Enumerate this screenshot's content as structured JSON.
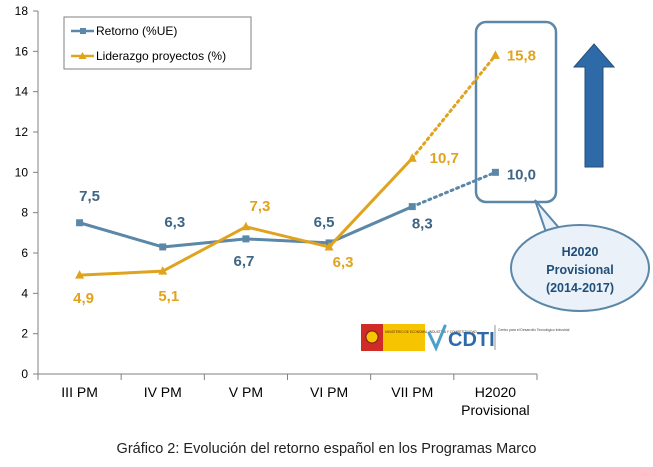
{
  "caption": "Gráfico 2: Evolución del retorno español en los Programas Marco",
  "logos": {
    "ministerio_text": "MINISTERIO DE ECONOMÍA, INDUSTRIA Y COMPETITIVIDAD",
    "cdti_text": "CDTI",
    "cdti_subtitle": "Centro para el Desarrollo Tecnológico Industrial"
  },
  "callout": {
    "line1": "H2020",
    "line2": "Provisional",
    "line3": "(2014-2017)"
  },
  "chart_data": {
    "type": "line",
    "categories": [
      "III PM",
      "IV PM",
      "V PM",
      "VI PM",
      "VII PM",
      "H2020 Provisional"
    ],
    "category_lines": [
      [
        "III PM"
      ],
      [
        "IV PM"
      ],
      [
        "V PM"
      ],
      [
        "VI PM"
      ],
      [
        "VII PM"
      ],
      [
        "H2020",
        "Provisional"
      ]
    ],
    "ylim": [
      0,
      18
    ],
    "yticks": [
      0,
      2,
      4,
      6,
      8,
      10,
      12,
      14,
      16,
      18
    ],
    "grid": false,
    "legend_position": "top-left",
    "series": [
      {
        "name": "Retorno (%UE)",
        "values": [
          7.5,
          6.3,
          6.7,
          6.5,
          8.3,
          10.0
        ],
        "labels": [
          "7,5",
          "6,3",
          "6,7",
          "6,5",
          "8,3",
          "10,0"
        ],
        "color": "#5b87a8",
        "label_color": "#3f6585",
        "marker": "square",
        "dotted_last_segment": true
      },
      {
        "name": "Liderazgo proyectos (%)",
        "values": [
          4.9,
          5.1,
          7.3,
          6.3,
          10.7,
          15.8
        ],
        "labels": [
          "4,9",
          "5,1",
          "7,3",
          "6,3",
          "10,7",
          "15,8"
        ],
        "color": "#e0a31e",
        "label_color": "#e0a31e",
        "marker": "triangle",
        "dotted_last_segment": true
      }
    ],
    "highlight_color": "#5b87a8",
    "arrow_color": "#2e6aa8"
  }
}
